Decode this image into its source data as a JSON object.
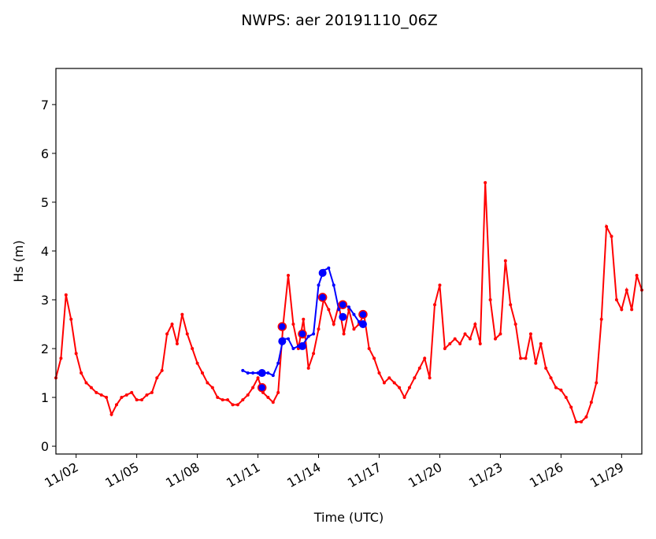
{
  "chart_data": {
    "type": "line",
    "title": "NWPS: aer 20191110_06Z",
    "x_label": "Time (UTC)",
    "y_label": "Hs (m)",
    "xlim": [
      1,
      30
    ],
    "ylim": [
      -0.16,
      7.74
    ],
    "xticks": [
      {
        "value": 2,
        "label": "11/02"
      },
      {
        "value": 5,
        "label": "11/05"
      },
      {
        "value": 8,
        "label": "11/08"
      },
      {
        "value": 11,
        "label": "11/11"
      },
      {
        "value": 14,
        "label": "11/14"
      },
      {
        "value": 17,
        "label": "11/17"
      },
      {
        "value": 20,
        "label": "11/20"
      },
      {
        "value": 23,
        "label": "11/23"
      },
      {
        "value": 26,
        "label": "11/26"
      },
      {
        "value": 29,
        "label": "11/29"
      }
    ],
    "yticks": [
      0,
      1,
      2,
      3,
      4,
      5,
      6,
      7
    ],
    "series": [
      {
        "color": "#ff0000",
        "line": true,
        "marker": "small",
        "x": [
          1,
          1.25,
          1.5,
          1.75,
          2,
          2.25,
          2.5,
          2.75,
          3,
          3.25,
          3.5,
          3.75,
          4,
          4.25,
          4.5,
          4.75,
          5,
          5.25,
          5.5,
          5.75,
          6,
          6.25,
          6.5,
          6.75,
          7,
          7.25,
          7.5,
          7.75,
          8,
          8.25,
          8.5,
          8.75,
          9,
          9.25,
          9.5,
          9.75,
          10,
          10.25,
          10.5,
          10.75,
          11,
          11.25,
          11.5,
          11.75,
          12,
          12.25,
          12.5,
          12.75,
          13,
          13.25,
          13.5,
          13.75,
          14,
          14.25,
          14.5,
          14.75,
          15,
          15.25,
          15.5,
          15.75,
          16,
          16.25,
          16.5,
          16.75,
          17,
          17.25,
          17.5,
          17.75,
          18,
          18.25,
          18.5,
          18.75,
          19,
          19.25,
          19.5,
          19.75,
          20,
          20.25,
          20.5,
          20.75,
          21,
          21.25,
          21.5,
          21.75,
          22,
          22.25,
          22.5,
          22.75,
          23,
          23.25,
          23.5,
          23.75,
          24,
          24.25,
          24.5,
          24.75,
          25,
          25.25,
          25.5,
          25.75,
          26,
          26.25,
          26.5,
          26.75,
          27,
          27.25,
          27.5,
          27.75,
          28,
          28.25,
          28.5,
          28.75,
          29,
          29.25,
          29.5,
          29.75,
          30
        ],
        "values": [
          1.4,
          1.8,
          3.1,
          2.6,
          1.9,
          1.5,
          1.3,
          1.2,
          1.1,
          1.05,
          1.0,
          0.65,
          0.85,
          1.0,
          1.05,
          1.1,
          0.95,
          0.95,
          1.05,
          1.1,
          1.4,
          1.55,
          2.3,
          2.5,
          2.1,
          2.7,
          2.3,
          2.0,
          1.7,
          1.5,
          1.3,
          1.2,
          1.0,
          0.95,
          0.95,
          0.85,
          0.85,
          0.95,
          1.05,
          1.2,
          1.4,
          1.1,
          1.0,
          0.9,
          1.1,
          2.5,
          3.5,
          2.5,
          2.0,
          2.6,
          1.6,
          1.9,
          2.4,
          3.0,
          2.8,
          2.5,
          2.9,
          2.3,
          2.8,
          2.4,
          2.5,
          2.7,
          2.0,
          1.8,
          1.5,
          1.3,
          1.4,
          1.3,
          1.2,
          1.0,
          1.2,
          1.4,
          1.6,
          1.8,
          1.4,
          2.9,
          3.3,
          2.0,
          2.1,
          2.2,
          2.1,
          2.3,
          2.2,
          2.5,
          2.1,
          5.4,
          3.0,
          2.2,
          2.3,
          3.8,
          2.9,
          2.5,
          1.8,
          1.8,
          2.3,
          1.7,
          2.1,
          1.6,
          1.4,
          1.2,
          1.15,
          1.0,
          0.8,
          0.5,
          0.5,
          0.6,
          0.9,
          1.3,
          2.6,
          4.5,
          4.3,
          3.0,
          2.8,
          3.2,
          2.8,
          3.5,
          3.2
        ]
      },
      {
        "color": "#0000ff",
        "line": true,
        "marker": "small",
        "x": [
          10.25,
          10.5,
          10.75,
          11,
          11.25,
          11.5,
          11.75,
          12,
          12.25,
          12.5,
          12.75,
          13,
          13.25,
          13.5,
          13.75,
          14,
          14.25,
          14.5,
          14.75,
          15,
          15.25,
          15.5,
          15.75,
          16,
          16.25
        ],
        "values": [
          1.55,
          1.5,
          1.5,
          1.5,
          1.5,
          1.5,
          1.45,
          1.7,
          2.2,
          2.2,
          2.0,
          2.05,
          2.1,
          2.25,
          2.3,
          3.3,
          3.6,
          3.65,
          3.3,
          2.8,
          2.9,
          2.85,
          2.7,
          2.55,
          2.5
        ]
      },
      {
        "color": "#0000ff",
        "edgecolor": "#ff0000",
        "line": false,
        "marker": "large",
        "x": [
          11.2,
          12.2,
          13.2,
          14.2,
          15.2,
          16.2
        ],
        "values": [
          1.2,
          2.45,
          2.3,
          3.05,
          2.9,
          2.7
        ]
      },
      {
        "color": "#0000ff",
        "line": false,
        "marker": "large",
        "x": [
          11.2,
          12.2,
          13.2,
          14.2,
          15.2,
          16.2
        ],
        "values": [
          1.5,
          2.15,
          2.05,
          3.55,
          2.65,
          2.5
        ]
      }
    ]
  }
}
